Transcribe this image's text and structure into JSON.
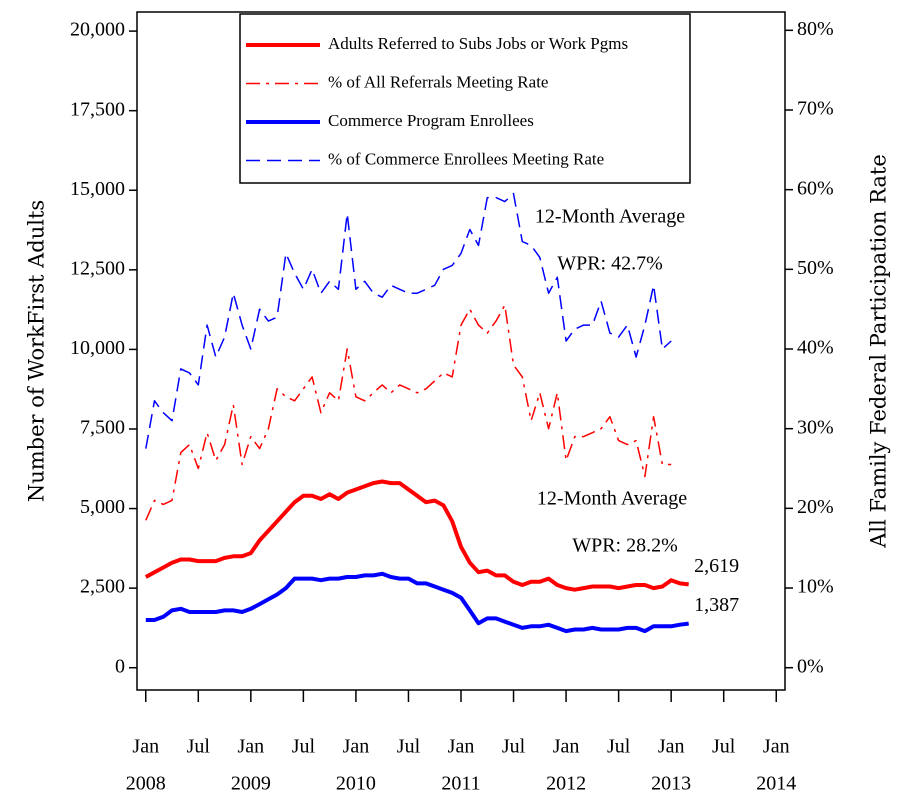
{
  "chart_data": {
    "type": "line",
    "y_label": "Number of WorkFirst Adults",
    "y2_label": "All Family Federal Participation Rate",
    "x": [
      "2008-01",
      "2008-02",
      "2008-03",
      "2008-04",
      "2008-05",
      "2008-06",
      "2008-07",
      "2008-08",
      "2008-09",
      "2008-10",
      "2008-11",
      "2008-12",
      "2009-01",
      "2009-02",
      "2009-03",
      "2009-04",
      "2009-05",
      "2009-06",
      "2009-07",
      "2009-08",
      "2009-09",
      "2009-10",
      "2009-11",
      "2009-12",
      "2010-01",
      "2010-02",
      "2010-03",
      "2010-04",
      "2010-05",
      "2010-06",
      "2010-07",
      "2010-08",
      "2010-09",
      "2010-10",
      "2010-11",
      "2010-12",
      "2011-01",
      "2011-02",
      "2011-03",
      "2011-04",
      "2011-05",
      "2011-06",
      "2011-07",
      "2011-08",
      "2011-09",
      "2011-10",
      "2011-11",
      "2011-12",
      "2012-01",
      "2012-02",
      "2012-03",
      "2012-04",
      "2012-05",
      "2012-06",
      "2012-07",
      "2012-08",
      "2012-09",
      "2012-10",
      "2012-11",
      "2012-12",
      "2013-01",
      "2013-02",
      "2013-03"
    ],
    "xlim": [
      "2007-12",
      "2014-02"
    ],
    "xticks": [
      {
        "value": "2008-01",
        "label": "Jan"
      },
      {
        "value": "2008-07",
        "label": "Jul"
      },
      {
        "value": "2009-01",
        "label": "Jan"
      },
      {
        "value": "2009-07",
        "label": "Jul"
      },
      {
        "value": "2010-01",
        "label": "Jan"
      },
      {
        "value": "2010-07",
        "label": "Jul"
      },
      {
        "value": "2011-01",
        "label": "Jan"
      },
      {
        "value": "2011-07",
        "label": "Jul"
      },
      {
        "value": "2012-01",
        "label": "Jan"
      },
      {
        "value": "2012-07",
        "label": "Jul"
      },
      {
        "value": "2013-01",
        "label": "Jan"
      },
      {
        "value": "2013-07",
        "label": "Jul"
      },
      {
        "value": "2014-01",
        "label": "Jan"
      }
    ],
    "xtick_years": [
      {
        "value": "2008-01",
        "label": "2008"
      },
      {
        "value": "2009-01",
        "label": "2009"
      },
      {
        "value": "2010-01",
        "label": "2010"
      },
      {
        "value": "2011-01",
        "label": "2011"
      },
      {
        "value": "2012-01",
        "label": "2012"
      },
      {
        "value": "2013-01",
        "label": "2013"
      },
      {
        "value": "2014-01",
        "label": "2014"
      }
    ],
    "ylim": [
      -700,
      20600
    ],
    "yticks": [
      0,
      {
        "value": 2500,
        "label": "2,500"
      },
      {
        "value": 5000,
        "label": "5,000"
      },
      {
        "value": 7500,
        "label": "7,500"
      },
      {
        "value": 10000,
        "label": "10,000"
      },
      {
        "value": 12500,
        "label": "12,500"
      },
      {
        "value": 15000,
        "label": "15,000"
      },
      {
        "value": 17500,
        "label": "17,500"
      },
      {
        "value": 20000,
        "label": "20,000"
      }
    ],
    "y2lim": [
      -2.8,
      82.3
    ],
    "y2ticks": [
      {
        "value": 0,
        "label": "0%"
      },
      {
        "value": 10,
        "label": "10%"
      },
      {
        "value": 20,
        "label": "20%"
      },
      {
        "value": 30,
        "label": "30%"
      },
      {
        "value": 40,
        "label": "40%"
      },
      {
        "value": 50,
        "label": "50%"
      },
      {
        "value": 60,
        "label": "60%"
      },
      {
        "value": 70,
        "label": "70%"
      },
      {
        "value": 80,
        "label": "80%"
      }
    ],
    "series": [
      {
        "name": "Adults Referred to Subs Jobs or Work Pgms",
        "color": "#ff0000",
        "style": "solid",
        "width": 4,
        "values": [
          2850,
          3000,
          3150,
          3300,
          3400,
          3400,
          3350,
          3350,
          3350,
          3450,
          3500,
          3500,
          3600,
          4000,
          4300,
          4600,
          4900,
          5200,
          5400,
          5400,
          5300,
          5450,
          5300,
          5500,
          5600,
          5700,
          5800,
          5850,
          5800,
          5800,
          5600,
          5400,
          5200,
          5250,
          5100,
          4600,
          3800,
          3300,
          3000,
          3050,
          2900,
          2900,
          2700,
          2600,
          2700,
          2700,
          2800,
          2600,
          2500,
          2450,
          2500,
          2550,
          2550,
          2550,
          2500,
          2550,
          2600,
          2600,
          2500,
          2550,
          2750,
          2650,
          2619
        ],
        "value_labels": [
          null,
          null,
          null,
          null,
          null,
          null,
          null,
          null,
          null,
          null,
          null,
          null,
          null,
          null,
          null,
          null,
          null,
          null,
          null,
          null,
          null,
          null,
          null,
          null,
          null,
          null,
          null,
          null,
          null,
          null,
          null,
          null,
          null,
          null,
          null,
          null,
          null,
          null,
          null,
          null,
          null,
          null,
          null,
          null,
          null,
          null,
          null,
          null,
          null,
          null,
          null,
          null,
          null,
          null,
          null,
          null,
          null,
          null,
          null,
          null,
          null,
          null,
          "2,619"
        ]
      },
      {
        "name": "% of All Referrals Meeting Rate",
        "color": "#ff0000",
        "style": "dashdot",
        "width": 1.5,
        "axis": "y2",
        "values": [
          18.5,
          21,
          20.5,
          21,
          27,
          28,
          25,
          29.5,
          26,
          28,
          33,
          25.5,
          29,
          27.5,
          30,
          35,
          34,
          33.5,
          35,
          36.5,
          32,
          34.5,
          33.5,
          40,
          34,
          33.5,
          34.5,
          35.5,
          34.5,
          35.5,
          35,
          34.5,
          35,
          36,
          37,
          36.5,
          43,
          45,
          43,
          42,
          43.5,
          45.5,
          38,
          36.5,
          31,
          34.5,
          30,
          34.5,
          26,
          29,
          29,
          29.5,
          30,
          31.5,
          28.5,
          28,
          28.5,
          24,
          31.5,
          25.5,
          25.5,
          null,
          null
        ]
      },
      {
        "name": "Commerce Program Enrollees",
        "color": "#0000ff",
        "style": "solid",
        "width": 4,
        "values": [
          1500,
          1500,
          1600,
          1800,
          1850,
          1750,
          1750,
          1750,
          1750,
          1800,
          1800,
          1750,
          1850,
          2000,
          2150,
          2300,
          2500,
          2800,
          2800,
          2800,
          2750,
          2800,
          2800,
          2850,
          2850,
          2900,
          2900,
          2950,
          2850,
          2800,
          2800,
          2650,
          2650,
          2550,
          2450,
          2350,
          2200,
          1800,
          1400,
          1550,
          1550,
          1450,
          1350,
          1250,
          1300,
          1300,
          1350,
          1250,
          1150,
          1200,
          1200,
          1250,
          1200,
          1200,
          1200,
          1250,
          1250,
          1150,
          1300,
          1300,
          1300,
          1350,
          1387
        ],
        "value_labels": [
          null,
          null,
          null,
          null,
          null,
          null,
          null,
          null,
          null,
          null,
          null,
          null,
          null,
          null,
          null,
          null,
          null,
          null,
          null,
          null,
          null,
          null,
          null,
          null,
          null,
          null,
          null,
          null,
          null,
          null,
          null,
          null,
          null,
          null,
          null,
          null,
          null,
          null,
          null,
          null,
          null,
          null,
          null,
          null,
          null,
          null,
          null,
          null,
          null,
          null,
          null,
          null,
          null,
          null,
          null,
          null,
          null,
          null,
          null,
          null,
          null,
          null,
          "1,387"
        ]
      },
      {
        "name": "% of Commerce Enrollees Meeting Rate",
        "color": "#0000ff",
        "style": "dash",
        "width": 1.5,
        "axis": "y2",
        "values": [
          27.5,
          33.5,
          32,
          31,
          37.5,
          37,
          35.5,
          43,
          39,
          41.5,
          47,
          43,
          40,
          45,
          43.5,
          44,
          52,
          49.5,
          47.5,
          50,
          47,
          48.5,
          47.5,
          57,
          47.5,
          48.5,
          47,
          46.5,
          48,
          47.5,
          47,
          47,
          47.5,
          48,
          50,
          50.5,
          52,
          55,
          53,
          59,
          59,
          58.5,
          59.5,
          53.5,
          53,
          51.5,
          47,
          49,
          41,
          42.5,
          43,
          43,
          46,
          42,
          41.5,
          43,
          39,
          43,
          48,
          40,
          41,
          null,
          null
        ]
      }
    ],
    "annotations": [
      {
        "lines": [
          "12-Month Average",
          "WPR: 42.7%"
        ],
        "color": "#0000ff"
      },
      {
        "lines": [
          "12-Month Average",
          "WPR: 28.2%"
        ],
        "color": "#ff0000"
      }
    ]
  }
}
